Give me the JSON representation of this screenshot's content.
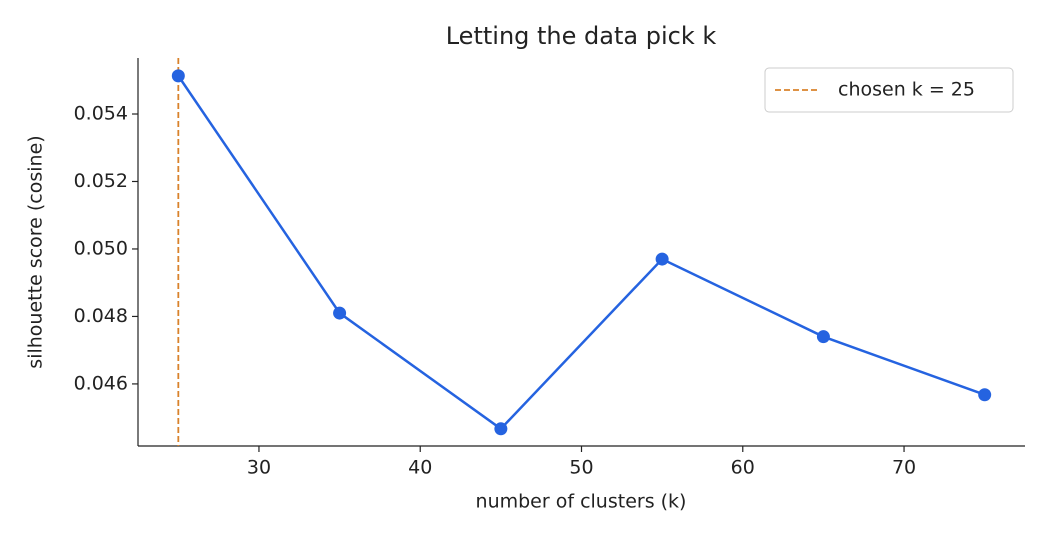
{
  "chart_data": {
    "type": "line",
    "title": "Letting the data pick k",
    "xlabel": "number of clusters (k)",
    "ylabel": "silhouette score (cosine)",
    "x": [
      25,
      35,
      45,
      55,
      65,
      75
    ],
    "series": [
      {
        "color": "#2563e0",
        "values": [
          0.05513,
          0.0481,
          0.04467,
          0.0497,
          0.0474,
          0.04568
        ]
      }
    ],
    "xlim": [
      22.5,
      77.5
    ],
    "xticks": [
      30,
      40,
      50,
      60,
      70
    ],
    "ylim": [
      0.04416,
      0.05566
    ],
    "yticks": [
      0.046,
      0.048,
      {
        "value": 0.05,
        "label": "0.050"
      },
      0.052,
      0.054
    ],
    "vline": {
      "x": 25,
      "label": "chosen k = 25",
      "color": "#d9822b"
    },
    "legend": "upper right"
  }
}
